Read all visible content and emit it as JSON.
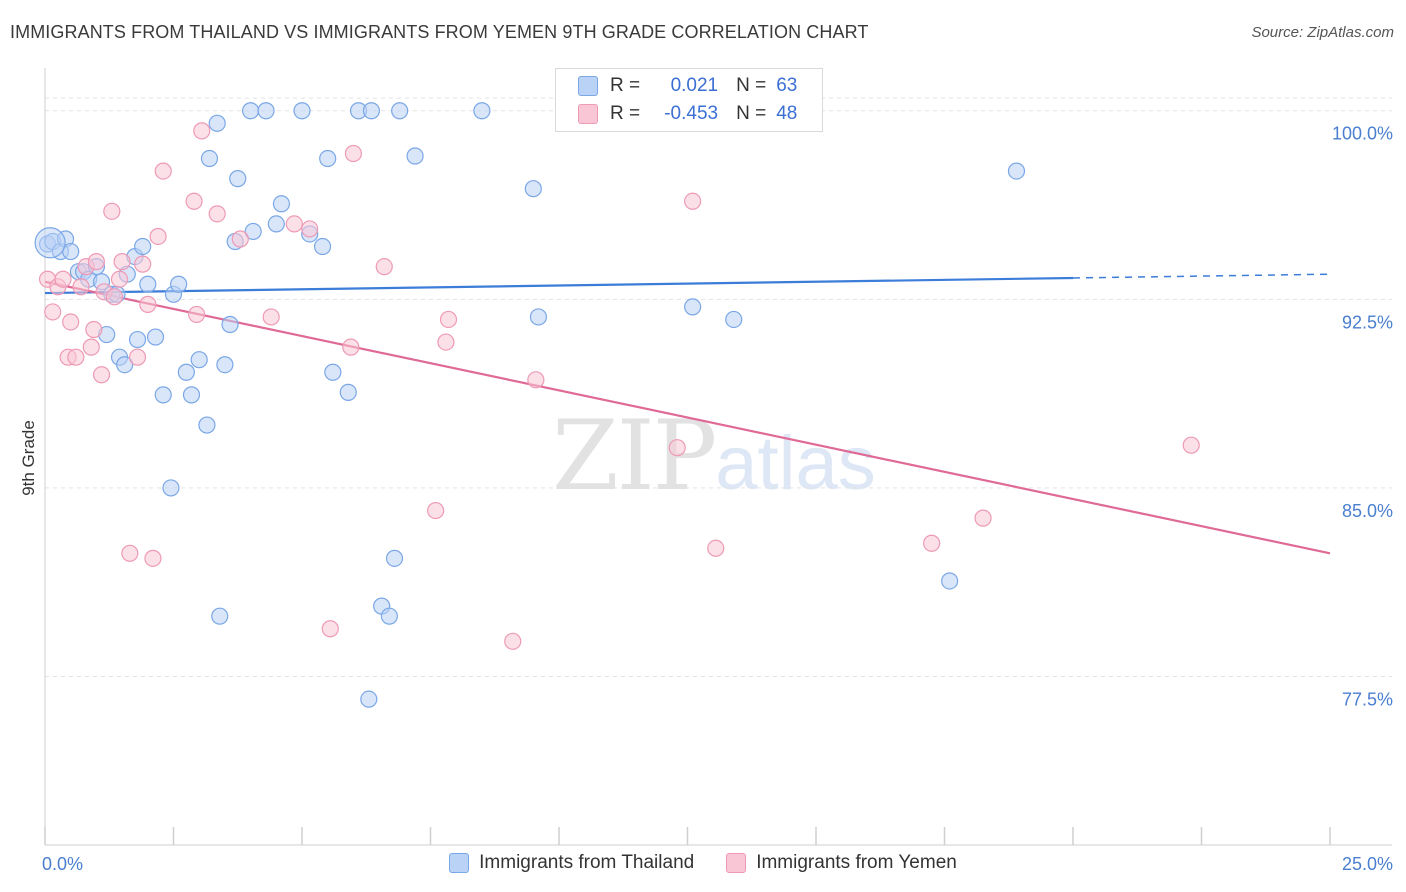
{
  "header": {
    "title": "IMMIGRANTS FROM THAILAND VS IMMIGRANTS FROM YEMEN 9TH GRADE CORRELATION CHART",
    "source": "Source: ZipAtlas.com"
  },
  "watermark": {
    "zip": "ZIP",
    "atlas": "atlas"
  },
  "legend": {
    "r_label": "R =",
    "n_label": "N =",
    "rows": [
      {
        "r": "0.021",
        "n": "63",
        "fill": "#b9d2f5",
        "stroke": "#7aa7e6"
      },
      {
        "r": "-0.453",
        "n": "48",
        "fill": "#f9c6d6",
        "stroke": "#ee9ab5"
      }
    ]
  },
  "chart_data": {
    "type": "scatter",
    "title": "IMMIGRANTS FROM THAILAND VS IMMIGRANTS FROM YEMEN 9TH GRADE CORRELATION CHART",
    "ylabel": "9th Grade",
    "xlabel": "",
    "xlim": [
      0,
      25
    ],
    "ylim": [
      70.8,
      101.7
    ],
    "x_tick_labels": [
      "0.0%",
      "25.0%"
    ],
    "y_ticks": [
      77.5,
      85.0,
      92.5,
      100.0
    ],
    "y_tick_labels": [
      "77.5%",
      "85.0%",
      "92.5%",
      "100.0%"
    ],
    "grid": true,
    "legend_position": "top-center",
    "series": [
      {
        "name": "Immigrants from Thailand",
        "color": "#7aa7e6",
        "fill": "#b9d2f5",
        "trend": {
          "x": [
            0,
            20,
            25
          ],
          "y": [
            92.75,
            93.35,
            93.5
          ],
          "solid_until": 20
        },
        "points": [
          [
            0.05,
            94.7
          ],
          [
            0.15,
            94.8
          ],
          [
            0.3,
            94.4
          ],
          [
            0.4,
            94.9
          ],
          [
            0.5,
            94.4
          ],
          [
            0.65,
            93.6
          ],
          [
            0.75,
            93.6
          ],
          [
            0.85,
            93.3
          ],
          [
            1.0,
            93.8
          ],
          [
            1.1,
            93.2
          ],
          [
            1.3,
            92.7
          ],
          [
            1.4,
            92.7
          ],
          [
            1.6,
            93.5
          ],
          [
            1.75,
            94.2
          ],
          [
            1.9,
            94.6
          ],
          [
            2.0,
            93.1
          ],
          [
            2.15,
            91.0
          ],
          [
            2.5,
            92.7
          ],
          [
            2.6,
            93.1
          ],
          [
            1.2,
            91.1
          ],
          [
            1.45,
            90.2
          ],
          [
            1.55,
            89.9
          ],
          [
            1.8,
            90.9
          ],
          [
            2.3,
            88.7
          ],
          [
            2.45,
            85.0
          ],
          [
            2.75,
            89.6
          ],
          [
            2.85,
            88.7
          ],
          [
            3.0,
            90.1
          ],
          [
            3.15,
            87.5
          ],
          [
            3.4,
            79.9
          ],
          [
            3.5,
            89.9
          ],
          [
            3.6,
            91.5
          ],
          [
            3.7,
            94.8
          ],
          [
            3.75,
            97.3
          ],
          [
            4.05,
            95.2
          ],
          [
            3.2,
            98.1
          ],
          [
            3.35,
            99.5
          ],
          [
            4.0,
            100.0
          ],
          [
            4.3,
            100.0
          ],
          [
            4.5,
            95.5
          ],
          [
            4.6,
            96.3
          ],
          [
            5.0,
            100.0
          ],
          [
            5.15,
            95.1
          ],
          [
            5.4,
            94.6
          ],
          [
            5.5,
            98.1
          ],
          [
            5.6,
            89.6
          ],
          [
            5.9,
            88.8
          ],
          [
            6.1,
            100.0
          ],
          [
            6.35,
            100.0
          ],
          [
            6.55,
            80.3
          ],
          [
            6.7,
            79.9
          ],
          [
            6.8,
            82.2
          ],
          [
            6.3,
            76.6
          ],
          [
            6.9,
            100.0
          ],
          [
            7.2,
            98.2
          ],
          [
            8.5,
            100.0
          ],
          [
            9.5,
            96.9
          ],
          [
            9.6,
            91.8
          ],
          [
            12.4,
            100.0
          ],
          [
            12.6,
            92.2
          ],
          [
            13.4,
            91.7
          ],
          [
            17.6,
            81.3
          ],
          [
            18.9,
            97.6
          ]
        ]
      },
      {
        "name": "Immigrants from Yemen",
        "color": "#ee9ab5",
        "fill": "#f9c6d6",
        "trend": {
          "x": [
            0,
            25
          ],
          "y": [
            93.2,
            82.4
          ]
        },
        "points": [
          [
            0.05,
            93.3
          ],
          [
            0.15,
            92.0
          ],
          [
            0.25,
            93.0
          ],
          [
            0.35,
            93.3
          ],
          [
            0.45,
            90.2
          ],
          [
            0.5,
            91.6
          ],
          [
            0.6,
            90.2
          ],
          [
            0.7,
            93.0
          ],
          [
            0.8,
            93.8
          ],
          [
            0.9,
            90.6
          ],
          [
            0.95,
            91.3
          ],
          [
            1.0,
            94.0
          ],
          [
            1.1,
            89.5
          ],
          [
            1.15,
            92.8
          ],
          [
            1.3,
            96.0
          ],
          [
            1.35,
            92.6
          ],
          [
            1.45,
            93.3
          ],
          [
            1.5,
            94.0
          ],
          [
            1.65,
            82.4
          ],
          [
            1.8,
            90.2
          ],
          [
            1.9,
            93.9
          ],
          [
            2.0,
            92.3
          ],
          [
            2.1,
            82.2
          ],
          [
            2.2,
            95.0
          ],
          [
            2.3,
            97.6
          ],
          [
            2.9,
            96.4
          ],
          [
            2.95,
            91.9
          ],
          [
            3.05,
            99.2
          ],
          [
            3.35,
            95.9
          ],
          [
            3.8,
            94.9
          ],
          [
            4.4,
            91.8
          ],
          [
            4.85,
            95.5
          ],
          [
            5.15,
            95.3
          ],
          [
            5.55,
            79.4
          ],
          [
            5.95,
            90.6
          ],
          [
            6.0,
            98.3
          ],
          [
            6.6,
            93.8
          ],
          [
            7.6,
            84.1
          ],
          [
            7.85,
            91.7
          ],
          [
            7.8,
            90.8
          ],
          [
            9.1,
            78.9
          ],
          [
            9.55,
            89.3
          ],
          [
            12.3,
            86.6
          ],
          [
            12.6,
            96.4
          ],
          [
            13.05,
            82.6
          ],
          [
            17.25,
            82.8
          ],
          [
            18.25,
            83.8
          ],
          [
            22.3,
            86.7
          ]
        ]
      }
    ]
  },
  "bottom_legend": [
    {
      "label": "Immigrants from Thailand",
      "fill": "#b9d2f5",
      "stroke": "#7aa7e6"
    },
    {
      "label": "Immigrants from Yemen",
      "fill": "#f9c6d6",
      "stroke": "#ee9ab5"
    }
  ]
}
